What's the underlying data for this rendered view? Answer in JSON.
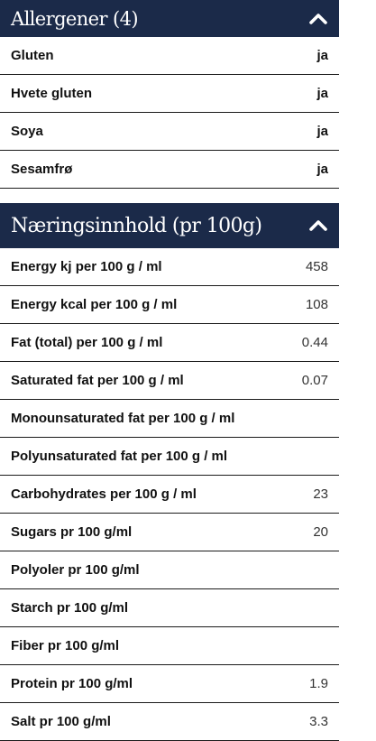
{
  "allergens": {
    "title": "Allergener (4)",
    "items": [
      {
        "label": "Gluten",
        "value": "ja"
      },
      {
        "label": "Hvete gluten",
        "value": "ja"
      },
      {
        "label": "Soya",
        "value": "ja"
      },
      {
        "label": "Sesamfrø",
        "value": "ja"
      }
    ]
  },
  "nutrition": {
    "title": "Næringsinnhold (pr 100g)",
    "items": [
      {
        "label": "Energy kj per 100 g / ml",
        "value": "458"
      },
      {
        "label": "Energy kcal per 100 g / ml",
        "value": "108"
      },
      {
        "label": "Fat (total) per 100 g / ml",
        "value": "0.44"
      },
      {
        "label": "Saturated fat per 100 g / ml",
        "value": "0.07"
      },
      {
        "label": "Monounsaturated fat per 100 g / ml",
        "value": ""
      },
      {
        "label": "Polyunsaturated fat per 100 g / ml",
        "value": ""
      },
      {
        "label": "Carbohydrates per 100 g / ml",
        "value": "23"
      },
      {
        "label": "Sugars pr 100 g/ml",
        "value": "20"
      },
      {
        "label": "Polyoler pr 100 g/ml",
        "value": ""
      },
      {
        "label": "Starch pr 100 g/ml",
        "value": ""
      },
      {
        "label": "Fiber pr 100 g/ml",
        "value": ""
      },
      {
        "label": "Protein pr 100 g/ml",
        "value": "1.9"
      },
      {
        "label": "Salt pr 100 g/ml",
        "value": "3.3"
      }
    ]
  },
  "icons": {
    "collapse": "chevron-up-icon"
  },
  "colors": {
    "header_bg": "#1b2a49",
    "header_text": "#ffffff",
    "divider": "#1b1b1b"
  }
}
